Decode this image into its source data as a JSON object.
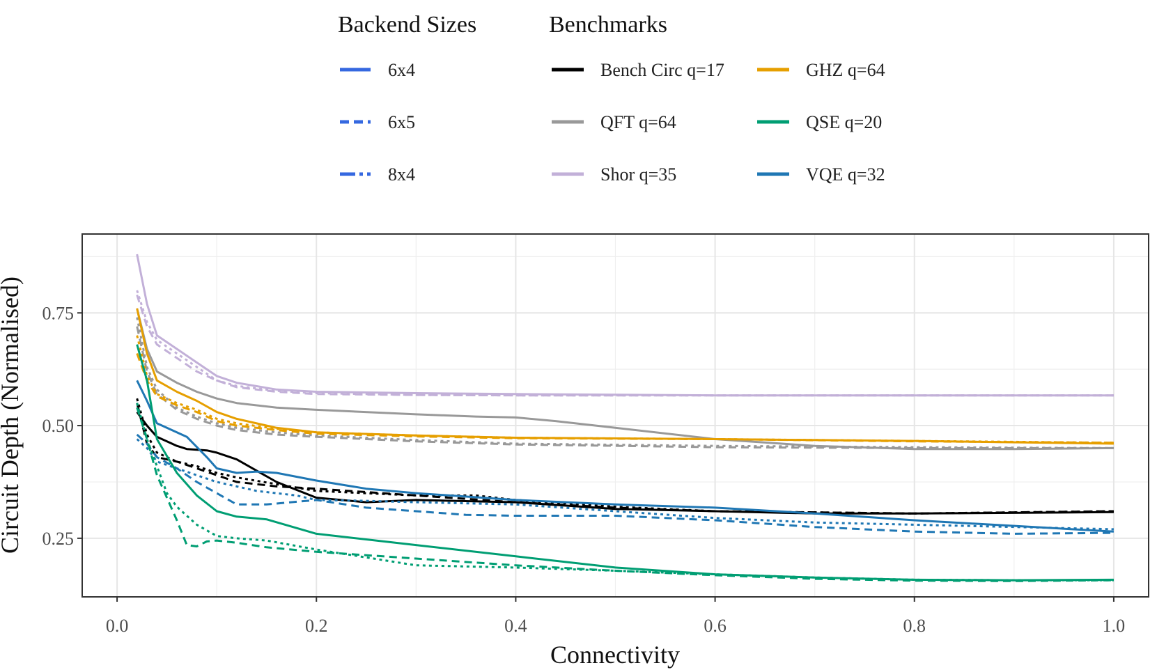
{
  "chart_data": {
    "type": "line",
    "xlabel": "Connectivity",
    "ylabel": "Circuit Depth (Normalised)",
    "xlim": [
      -0.035,
      1.035
    ],
    "ylim": [
      0.12,
      0.925
    ],
    "x_ticks": [
      0.0,
      0.2,
      0.4,
      0.6,
      0.8,
      1.0
    ],
    "x_tick_labels": [
      "0.0",
      "0.2",
      "0.4",
      "0.6",
      "0.8",
      "1.0"
    ],
    "y_ticks": [
      0.25,
      0.5,
      0.75
    ],
    "y_tick_labels": [
      "0.25",
      "0.50",
      "0.75"
    ],
    "grid": true,
    "legend_placement": "top",
    "legend": {
      "backend_title": "Backend Sizes",
      "benchmark_title": "Benchmarks",
      "backends": [
        {
          "name": "6x4",
          "dash": "solid"
        },
        {
          "name": "6x5",
          "dash": "dashed"
        },
        {
          "name": "8x4",
          "dash": "dotted"
        }
      ],
      "benchmarks": [
        {
          "name": "Bench Circ q=17",
          "color": "#000000"
        },
        {
          "name": "QFT q=64",
          "color": "#999999"
        },
        {
          "name": "Shor q=35",
          "color": "#c2b0d8"
        },
        {
          "name": "GHZ q=64",
          "color": "#e69f00"
        },
        {
          "name": "QSE q=20",
          "color": "#009e73"
        },
        {
          "name": "VQE q=32",
          "color": "#1f77b4"
        }
      ]
    },
    "series": [
      {
        "benchmark": "Shor q=35",
        "backend": "6x4",
        "x": [
          0.02,
          0.03,
          0.04,
          0.06,
          0.08,
          0.1,
          0.12,
          0.16,
          0.2,
          0.3,
          0.4,
          0.6,
          0.8,
          1.0
        ],
        "y": [
          0.88,
          0.77,
          0.7,
          0.67,
          0.64,
          0.61,
          0.595,
          0.58,
          0.575,
          0.572,
          0.57,
          0.567,
          0.567,
          0.567
        ]
      },
      {
        "benchmark": "Shor q=35",
        "backend": "6x5",
        "x": [
          0.02,
          0.03,
          0.04,
          0.06,
          0.08,
          0.1,
          0.12,
          0.16,
          0.2,
          0.3,
          0.4,
          0.6,
          0.8,
          1.0
        ],
        "y": [
          0.79,
          0.72,
          0.68,
          0.65,
          0.62,
          0.6,
          0.585,
          0.575,
          0.57,
          0.568,
          0.567,
          0.567,
          0.567,
          0.567
        ]
      },
      {
        "benchmark": "Shor q=35",
        "backend": "8x4",
        "x": [
          0.02,
          0.03,
          0.04,
          0.06,
          0.08,
          0.1,
          0.12,
          0.16,
          0.2,
          0.3,
          0.4,
          0.6,
          0.8,
          1.0
        ],
        "y": [
          0.8,
          0.73,
          0.69,
          0.66,
          0.63,
          0.6,
          0.588,
          0.577,
          0.572,
          0.568,
          0.567,
          0.567,
          0.567,
          0.567
        ]
      },
      {
        "benchmark": "QFT q=64",
        "backend": "6x4",
        "x": [
          0.02,
          0.03,
          0.04,
          0.06,
          0.08,
          0.1,
          0.12,
          0.16,
          0.2,
          0.3,
          0.36,
          0.4,
          0.44,
          0.5,
          0.6,
          0.7,
          0.8,
          0.9,
          1.0
        ],
        "y": [
          0.76,
          0.67,
          0.62,
          0.595,
          0.575,
          0.56,
          0.55,
          0.54,
          0.535,
          0.525,
          0.52,
          0.518,
          0.51,
          0.495,
          0.47,
          0.455,
          0.448,
          0.448,
          0.45
        ]
      },
      {
        "benchmark": "QFT q=64",
        "backend": "6x5",
        "x": [
          0.02,
          0.03,
          0.04,
          0.06,
          0.08,
          0.1,
          0.12,
          0.16,
          0.2,
          0.3,
          0.4,
          0.6,
          0.8,
          1.0
        ],
        "y": [
          0.72,
          0.62,
          0.57,
          0.535,
          0.515,
          0.5,
          0.49,
          0.48,
          0.475,
          0.465,
          0.458,
          0.452,
          0.45,
          0.45
        ]
      },
      {
        "benchmark": "QFT q=64",
        "backend": "8x4",
        "x": [
          0.02,
          0.03,
          0.04,
          0.06,
          0.08,
          0.1,
          0.12,
          0.16,
          0.2,
          0.3,
          0.4,
          0.6,
          0.8,
          1.0
        ],
        "y": [
          0.74,
          0.63,
          0.58,
          0.54,
          0.52,
          0.505,
          0.495,
          0.485,
          0.478,
          0.468,
          0.46,
          0.455,
          0.452,
          0.45
        ]
      },
      {
        "benchmark": "GHZ q=64",
        "backend": "6x4",
        "x": [
          0.02,
          0.03,
          0.04,
          0.06,
          0.08,
          0.1,
          0.12,
          0.16,
          0.2,
          0.3,
          0.4,
          0.6,
          0.8,
          1.0
        ],
        "y": [
          0.76,
          0.66,
          0.6,
          0.575,
          0.555,
          0.53,
          0.515,
          0.495,
          0.485,
          0.478,
          0.473,
          0.47,
          0.466,
          0.46
        ]
      },
      {
        "benchmark": "GHZ q=64",
        "backend": "6x5",
        "x": [
          0.02,
          0.03,
          0.04,
          0.06,
          0.08,
          0.1,
          0.12,
          0.16,
          0.2,
          0.3,
          0.4,
          0.6,
          0.8,
          1.0
        ],
        "y": [
          0.66,
          0.6,
          0.565,
          0.545,
          0.53,
          0.51,
          0.5,
          0.49,
          0.482,
          0.476,
          0.472,
          0.47,
          0.465,
          0.462
        ]
      },
      {
        "benchmark": "GHZ q=64",
        "backend": "8x4",
        "x": [
          0.02,
          0.03,
          0.04,
          0.06,
          0.08,
          0.1,
          0.12,
          0.16,
          0.2,
          0.3,
          0.4,
          0.6,
          0.8,
          1.0
        ],
        "y": [
          0.7,
          0.61,
          0.57,
          0.55,
          0.535,
          0.515,
          0.505,
          0.493,
          0.485,
          0.478,
          0.473,
          0.47,
          0.466,
          0.462
        ]
      },
      {
        "benchmark": "Bench Circ q=17",
        "backend": "6x4",
        "x": [
          0.02,
          0.03,
          0.04,
          0.06,
          0.07,
          0.09,
          0.1,
          0.12,
          0.14,
          0.16,
          0.2,
          0.25,
          0.3,
          0.4,
          0.5,
          0.6,
          0.7,
          0.8,
          1.0
        ],
        "y": [
          0.53,
          0.5,
          0.475,
          0.455,
          0.448,
          0.445,
          0.44,
          0.425,
          0.4,
          0.375,
          0.34,
          0.33,
          0.335,
          0.33,
          0.315,
          0.31,
          0.305,
          0.305,
          0.308
        ]
      },
      {
        "benchmark": "Bench Circ q=17",
        "backend": "6x5",
        "x": [
          0.02,
          0.03,
          0.04,
          0.06,
          0.08,
          0.1,
          0.12,
          0.16,
          0.2,
          0.3,
          0.4,
          0.5,
          0.6,
          0.8,
          1.0
        ],
        "y": [
          0.55,
          0.46,
          0.43,
          0.42,
          0.405,
          0.39,
          0.375,
          0.365,
          0.36,
          0.345,
          0.33,
          0.318,
          0.31,
          0.305,
          0.31
        ]
      },
      {
        "benchmark": "Bench Circ q=17",
        "backend": "8x4",
        "x": [
          0.02,
          0.03,
          0.04,
          0.06,
          0.08,
          0.1,
          0.12,
          0.16,
          0.2,
          0.3,
          0.36,
          0.4,
          0.5,
          0.6,
          0.8,
          1.0
        ],
        "y": [
          0.56,
          0.48,
          0.44,
          0.42,
          0.41,
          0.395,
          0.385,
          0.37,
          0.355,
          0.345,
          0.345,
          0.335,
          0.32,
          0.31,
          0.305,
          0.31
        ]
      },
      {
        "benchmark": "VQE q=32",
        "backend": "6x4",
        "x": [
          0.02,
          0.03,
          0.04,
          0.06,
          0.07,
          0.09,
          0.1,
          0.12,
          0.14,
          0.16,
          0.2,
          0.25,
          0.3,
          0.4,
          0.5,
          0.6,
          0.7,
          0.8,
          1.0
        ],
        "y": [
          0.6,
          0.555,
          0.505,
          0.485,
          0.475,
          0.43,
          0.405,
          0.395,
          0.398,
          0.395,
          0.378,
          0.36,
          0.35,
          0.335,
          0.325,
          0.318,
          0.305,
          0.29,
          0.265
        ]
      },
      {
        "benchmark": "VQE q=32",
        "backend": "6x5",
        "x": [
          0.02,
          0.03,
          0.04,
          0.06,
          0.08,
          0.1,
          0.12,
          0.15,
          0.2,
          0.25,
          0.3,
          0.35,
          0.4,
          0.5,
          0.6,
          0.7,
          0.8,
          0.9,
          1.0
        ],
        "y": [
          0.48,
          0.46,
          0.43,
          0.405,
          0.375,
          0.35,
          0.325,
          0.325,
          0.335,
          0.318,
          0.31,
          0.302,
          0.3,
          0.3,
          0.29,
          0.275,
          0.265,
          0.26,
          0.262
        ]
      },
      {
        "benchmark": "VQE q=32",
        "backend": "8x4",
        "x": [
          0.02,
          0.03,
          0.04,
          0.06,
          0.08,
          0.1,
          0.12,
          0.14,
          0.18,
          0.2,
          0.25,
          0.3,
          0.4,
          0.5,
          0.6,
          0.7,
          0.8,
          1.0
        ],
        "y": [
          0.47,
          0.45,
          0.42,
          0.405,
          0.39,
          0.375,
          0.365,
          0.355,
          0.345,
          0.335,
          0.333,
          0.33,
          0.325,
          0.31,
          0.295,
          0.285,
          0.28,
          0.27
        ]
      },
      {
        "benchmark": "QSE q=20",
        "backend": "6x4",
        "x": [
          0.02,
          0.03,
          0.04,
          0.06,
          0.08,
          0.1,
          0.12,
          0.15,
          0.2,
          0.3,
          0.4,
          0.5,
          0.6,
          0.7,
          0.8,
          0.9,
          1.0
        ],
        "y": [
          0.68,
          0.6,
          0.47,
          0.395,
          0.345,
          0.31,
          0.298,
          0.292,
          0.26,
          0.235,
          0.21,
          0.185,
          0.17,
          0.163,
          0.158,
          0.157,
          0.158
        ]
      },
      {
        "benchmark": "QSE q=20",
        "backend": "6x5",
        "x": [
          0.02,
          0.03,
          0.04,
          0.05,
          0.06,
          0.07,
          0.08,
          0.09,
          0.1,
          0.12,
          0.15,
          0.2,
          0.3,
          0.4,
          0.5,
          0.6,
          0.7,
          0.8,
          0.9,
          1.0
        ],
        "y": [
          0.54,
          0.47,
          0.39,
          0.34,
          0.29,
          0.235,
          0.232,
          0.243,
          0.245,
          0.24,
          0.23,
          0.22,
          0.205,
          0.19,
          0.178,
          0.168,
          0.16,
          0.156,
          0.155,
          0.157
        ]
      },
      {
        "benchmark": "QSE q=20",
        "backend": "8x4",
        "x": [
          0.02,
          0.03,
          0.04,
          0.05,
          0.06,
          0.08,
          0.1,
          0.12,
          0.15,
          0.2,
          0.3,
          0.4,
          0.5,
          0.6,
          0.7,
          0.8,
          0.9,
          1.0
        ],
        "y": [
          0.55,
          0.47,
          0.41,
          0.35,
          0.32,
          0.28,
          0.255,
          0.25,
          0.245,
          0.225,
          0.19,
          0.185,
          0.178,
          0.17,
          0.163,
          0.158,
          0.157,
          0.157
        ]
      }
    ]
  }
}
